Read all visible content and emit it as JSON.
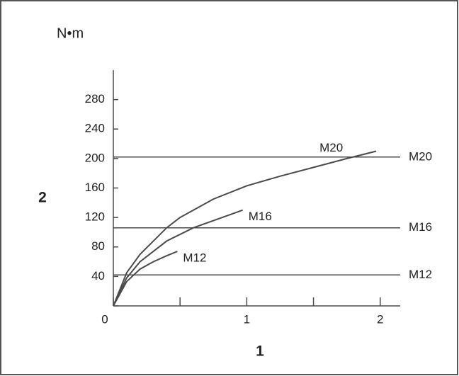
{
  "chart_data": {
    "type": "line",
    "y_unit": "N•m",
    "y_label": "2",
    "x_label": "1",
    "xlim": [
      0,
      2.15
    ],
    "xticks": [
      0,
      1,
      2
    ],
    "xminor_ticks": [
      0.5,
      1.5
    ],
    "ylim": [
      0,
      320
    ],
    "yticks": [
      0,
      40,
      80,
      120,
      160,
      200,
      240,
      280
    ],
    "color": "#4a4a4a",
    "series": [
      {
        "name": "M20",
        "color": "#4a4a4a",
        "x": [
          0,
          0.1,
          0.2,
          0.4,
          0.5,
          0.75,
          1,
          1.25,
          1.5,
          1.75,
          1.97
        ],
        "values": [
          0,
          45,
          70,
          106,
          120,
          145,
          163,
          176,
          188,
          200,
          210
        ]
      },
      {
        "name": "M16",
        "color": "#4a4a4a",
        "x": [
          0,
          0.1,
          0.2,
          0.4,
          0.6,
          0.8,
          0.97
        ],
        "values": [
          0,
          38,
          60,
          88,
          106,
          119,
          130
        ]
      },
      {
        "name": "M12",
        "color": "#4a4a4a",
        "x": [
          0,
          0.1,
          0.2,
          0.3,
          0.4,
          0.48
        ],
        "values": [
          0,
          33,
          50,
          60,
          68,
          74
        ]
      }
    ],
    "reference_lines": [
      {
        "name": "M20",
        "value": 202
      },
      {
        "name": "M16",
        "value": 106
      },
      {
        "name": "M12",
        "value": 42
      }
    ]
  }
}
